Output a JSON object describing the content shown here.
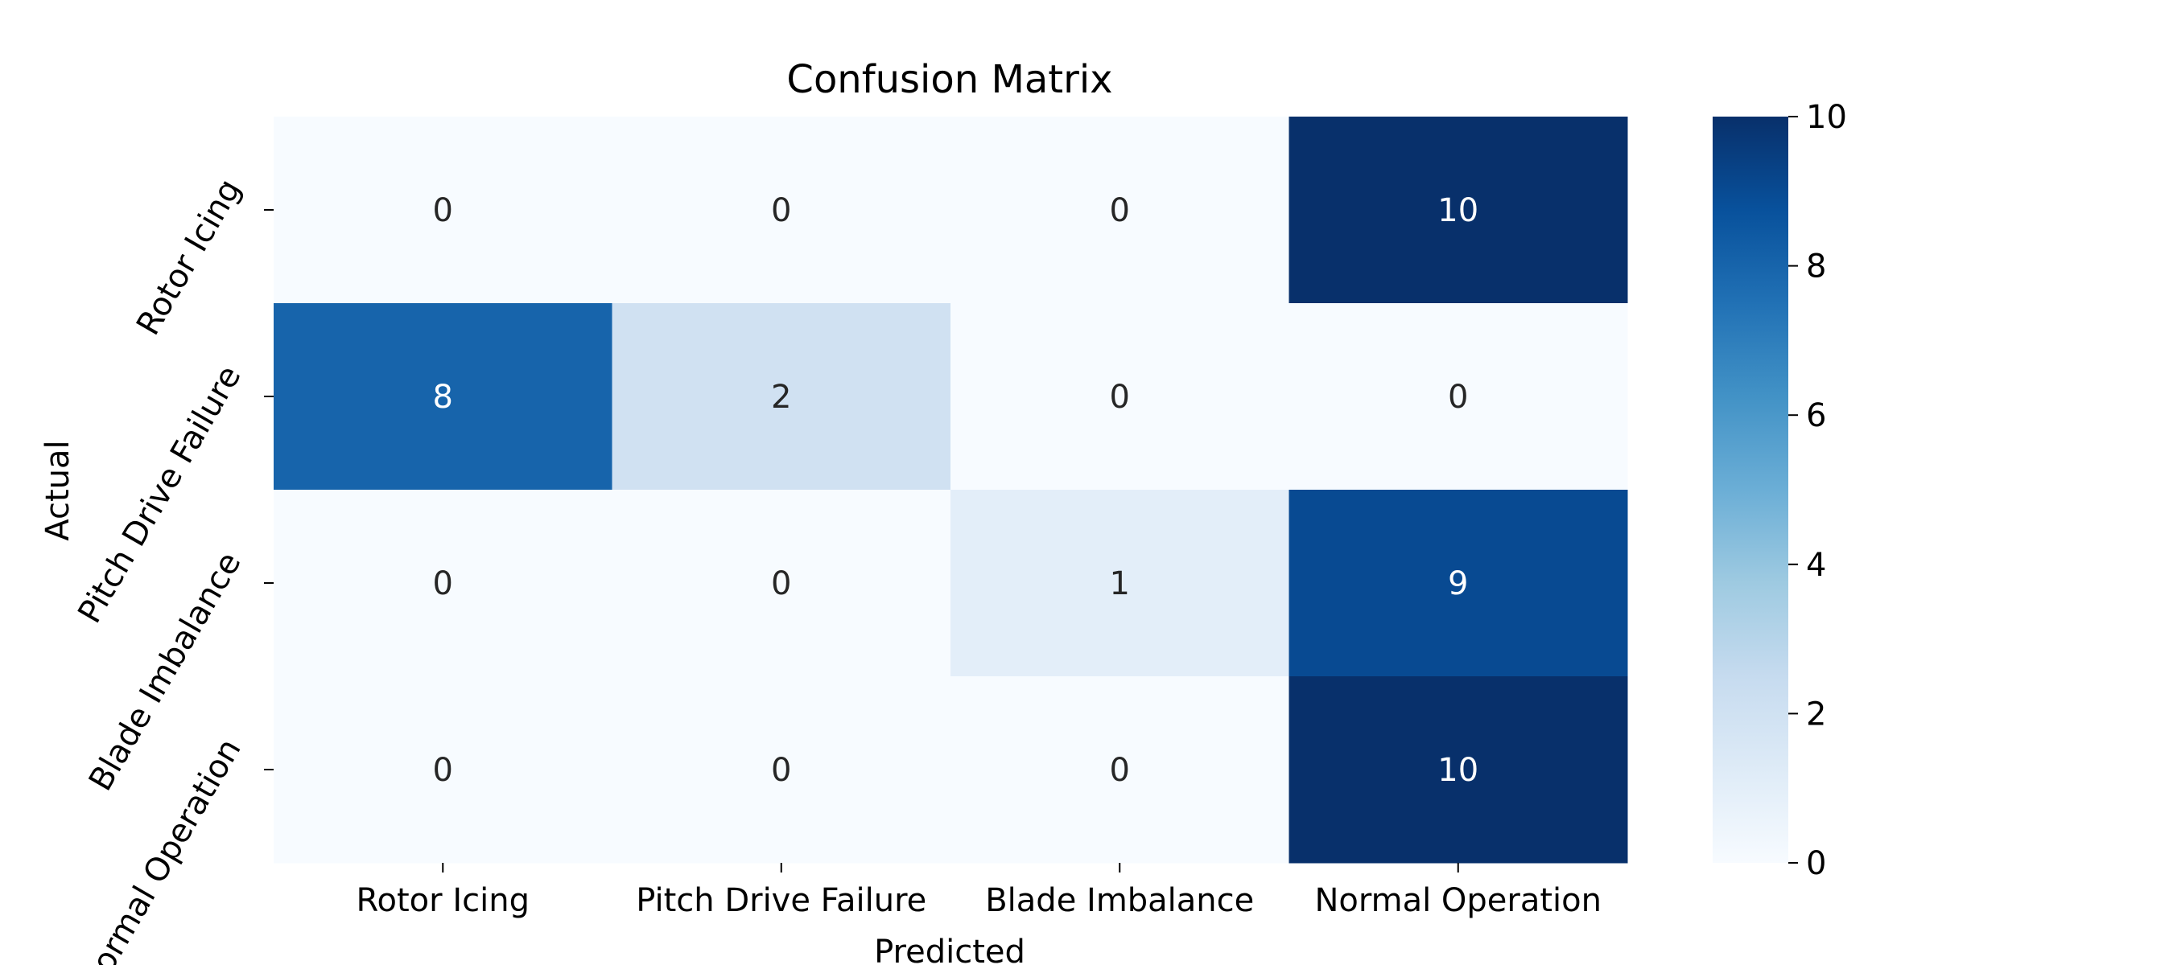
{
  "chart_data": {
    "type": "heatmap",
    "title": "Confusion Matrix",
    "xlabel": "Predicted",
    "ylabel": "Actual",
    "x_categories": [
      "Rotor Icing",
      "Pitch Drive Failure",
      "Blade Imbalance",
      "Normal Operation"
    ],
    "y_categories": [
      "Rotor Icing",
      "Pitch Drive Failure",
      "Blade Imbalance",
      "Normal Operation"
    ],
    "values": [
      [
        0,
        0,
        0,
        10
      ],
      [
        8,
        2,
        0,
        0
      ],
      [
        0,
        0,
        1,
        9
      ],
      [
        0,
        0,
        0,
        10
      ]
    ],
    "colormap": "Blues",
    "vmin": 0,
    "vmax": 10,
    "colorbar_ticks": [
      "0",
      "2",
      "4",
      "6",
      "8",
      "10"
    ]
  }
}
